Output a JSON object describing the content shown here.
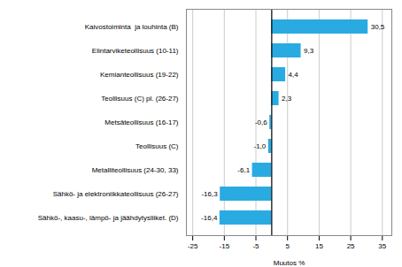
{
  "chart_data": {
    "type": "bar",
    "orientation": "horizontal",
    "categories": [
      "Sähkö-, kaasu-, lämpö- ja jäähdytysliiket. (D)",
      "Sähkö- ja elektroniikkateollisuus (26-27)",
      "Metalliteollisuus (24-30, 33)",
      "Teollisuus (C)",
      "Metsäteollisuus (16-17)",
      "Teollisuus (C) pl. (26-27)",
      "Kemianteollisuus (19-22)",
      "Elintarviketeollisuus (10-11)",
      "Kaivostoiminta  ja louhinta (B)"
    ],
    "values": [
      -16.4,
      -16.3,
      -6.1,
      -1.0,
      -0.6,
      2.3,
      4.4,
      9.3,
      30.5
    ],
    "value_labels": [
      "-16,4",
      "-16,3",
      "-6,1",
      "-1,0",
      "-0,6",
      "2,3",
      "4,4",
      "9,3",
      "30,5"
    ],
    "data_labels": true,
    "color": "#29ABE2",
    "xlabel": "Muutos %",
    "xlim": [
      -27,
      38
    ],
    "xticks": [
      -25,
      -15,
      -5,
      5,
      15,
      25,
      35
    ],
    "grid": true
  }
}
